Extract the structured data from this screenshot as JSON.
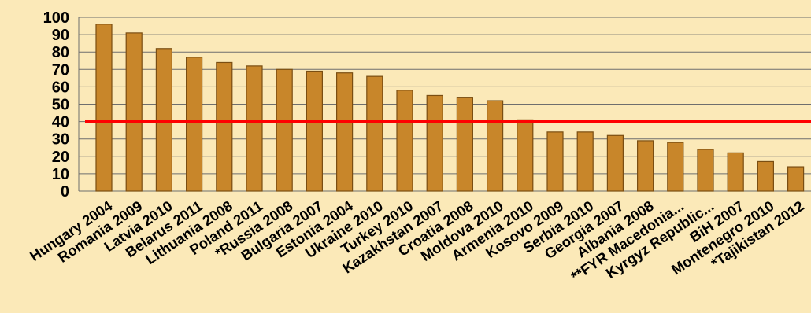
{
  "chart_data": {
    "type": "bar",
    "categories": [
      "Hungary 2004",
      "Romania 2009",
      "Latvia 2010",
      "Belarus 2011",
      "Lithuania 2008",
      "Poland 2011",
      "*Russia 2008",
      "Bulgaria 2007",
      "Estonia 2004",
      "Ukraine 2010",
      "Turkey 2010",
      "Kazakhstan 2007",
      "Croatia 2008",
      "Moldova 2010",
      "Armenia 2010",
      "Kosovo 2009",
      "Serbia 2010",
      "Georgia 2007",
      "Albania 2008",
      "**FYR Macedonia...",
      "Kyrgyz Republic...",
      "BiH 2007",
      "Montenegro 2010",
      "*Tajikistan 2012"
    ],
    "values": [
      96,
      91,
      82,
      77,
      74,
      72,
      70,
      69,
      68,
      66,
      58,
      55,
      54,
      52,
      41,
      34,
      34,
      32,
      29,
      28,
      24,
      22,
      17,
      14
    ],
    "ylim": [
      0,
      100
    ],
    "yticks": [
      0,
      10,
      20,
      30,
      40,
      50,
      60,
      70,
      80,
      90,
      100
    ],
    "reference_line": 40,
    "grid": true,
    "colors": {
      "background": "#fbe9b8",
      "bar_fill": "#c8862a",
      "bar_stroke": "#7a4e12",
      "grid": "#6e6e6e",
      "reference_line": "#ff0000"
    }
  }
}
